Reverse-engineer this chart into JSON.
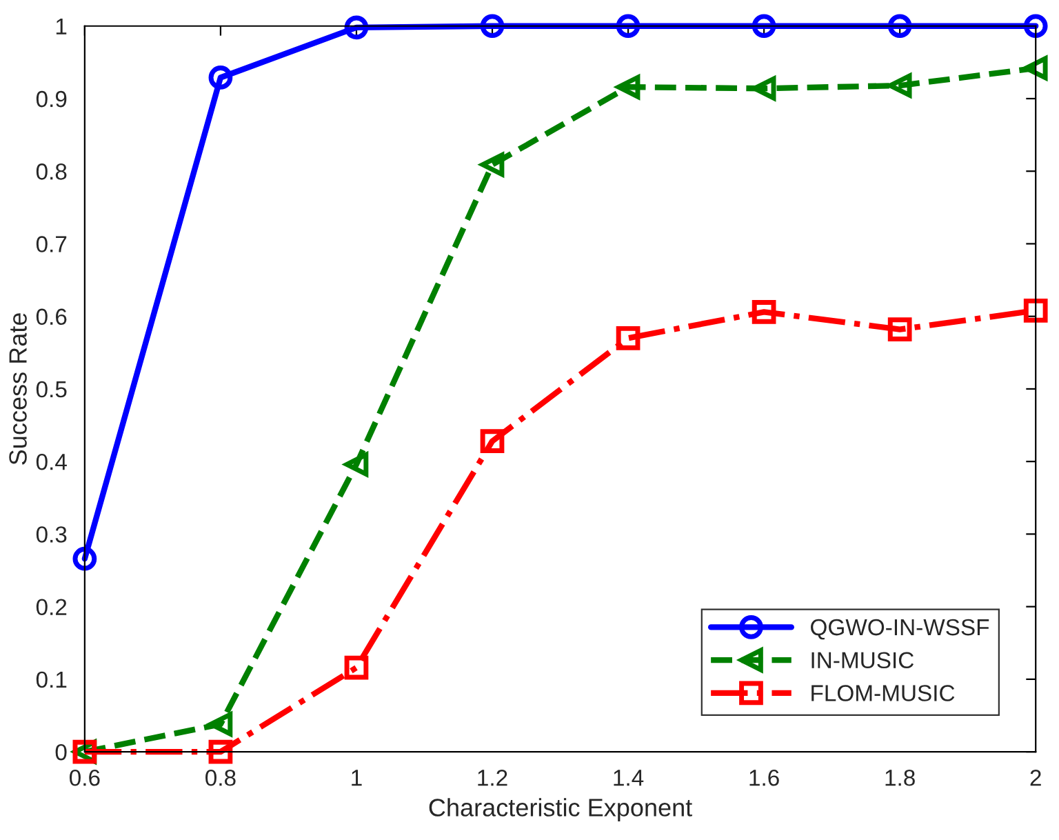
{
  "chart_data": {
    "type": "line",
    "xlabel": "Characteristic Exponent",
    "ylabel": "Success Rate",
    "x": [
      0.6,
      0.8,
      1.0,
      1.2,
      1.4,
      1.6,
      1.8,
      2.0
    ],
    "series": [
      {
        "name": "QGWO-IN-WSSF",
        "color": "#0000ff",
        "marker": "circle",
        "line_style": "solid",
        "values": [
          0.266,
          0.929,
          0.998,
          1.0,
          1.0,
          1.0,
          1.0,
          1.0
        ]
      },
      {
        "name": "IN-MUSIC",
        "color": "#008000",
        "marker": "triangle",
        "line_style": "dashed",
        "values": [
          0.0,
          0.038,
          0.396,
          0.809,
          0.916,
          0.914,
          0.918,
          0.942
        ]
      },
      {
        "name": "FLOM-MUSIC",
        "color": "#ff0000",
        "marker": "square",
        "line_style": "dashdot",
        "values": [
          0.0,
          0.0,
          0.116,
          0.428,
          0.57,
          0.606,
          0.582,
          0.608
        ]
      }
    ],
    "xlim": [
      0.6,
      2.0
    ],
    "xticks": [
      0.6,
      0.8,
      1,
      1.2,
      1.4,
      1.6,
      1.8,
      2
    ],
    "ylim": [
      0,
      1
    ],
    "yticks": [
      0,
      0.1,
      0.2,
      0.3,
      0.4,
      0.5,
      0.6,
      0.7,
      0.8,
      0.9,
      1
    ],
    "grid": false,
    "legend": "bottom right"
  }
}
